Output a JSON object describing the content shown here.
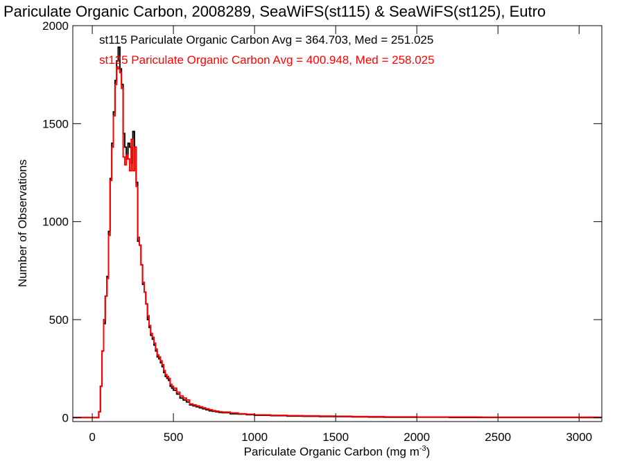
{
  "chart_data": {
    "type": "line",
    "step": true,
    "title": "Pariculate Organic Carbon, 2008289, SeaWiFS(st115) & SeaWiFS(st125), Eutro",
    "xlabel_main": "Pariculate Organic Carbon (mg m",
    "xlabel_sup": "-3",
    "xlabel_close": ")",
    "ylabel": "Number of Observations",
    "xlim": [
      -120,
      3140
    ],
    "ylim": [
      -20,
      2000
    ],
    "xticks": [
      0,
      500,
      1000,
      1500,
      2000,
      2500,
      3000
    ],
    "yticks": [
      0,
      500,
      1000,
      1500,
      2000
    ],
    "grid": false,
    "legend_position": "top-left",
    "series": [
      {
        "name": "st115 Pariculate Organic Carbon Avg = 364.703, Med = 251.025",
        "color": "#000000",
        "x": [
          -120,
          25,
          40,
          50,
          60,
          70,
          80,
          90,
          100,
          110,
          120,
          130,
          140,
          150,
          160,
          170,
          180,
          190,
          200,
          210,
          220,
          230,
          240,
          250,
          260,
          270,
          280,
          290,
          300,
          310,
          320,
          330,
          340,
          350,
          360,
          370,
          380,
          390,
          400,
          410,
          420,
          430,
          440,
          450,
          460,
          470,
          480,
          490,
          500,
          520,
          540,
          560,
          580,
          600,
          620,
          640,
          660,
          680,
          700,
          720,
          740,
          760,
          780,
          800,
          850,
          900,
          950,
          1000,
          1100,
          1200,
          1300,
          1400,
          1500,
          1600,
          1700,
          1800,
          2000,
          2200,
          2400,
          2600,
          2800,
          3000,
          3140
        ],
        "values": [
          0,
          0,
          30,
          160,
          340,
          480,
          620,
          720,
          950,
          1220,
          1400,
          1560,
          1720,
          1820,
          1890,
          1780,
          1700,
          1450,
          1380,
          1320,
          1400,
          1380,
          1300,
          1460,
          1380,
          1200,
          900,
          880,
          780,
          680,
          640,
          580,
          500,
          460,
          420,
          400,
          370,
          340,
          310,
          300,
          280,
          260,
          230,
          210,
          200,
          190,
          160,
          150,
          140,
          120,
          100,
          90,
          80,
          65,
          60,
          55,
          50,
          45,
          40,
          35,
          32,
          30,
          27,
          25,
          20,
          18,
          15,
          12,
          10,
          8,
          7,
          6,
          5,
          4,
          3,
          2,
          2,
          1,
          1,
          1,
          1,
          0,
          0
        ]
      },
      {
        "name": "st125 Pariculate Organic Carbon Avg = 400.948, Med = 258.025",
        "color": "#ff0000",
        "x": [
          -120,
          25,
          40,
          50,
          60,
          70,
          80,
          90,
          100,
          110,
          120,
          130,
          140,
          150,
          160,
          170,
          180,
          190,
          200,
          210,
          220,
          230,
          240,
          250,
          260,
          270,
          280,
          290,
          300,
          310,
          320,
          330,
          340,
          350,
          360,
          370,
          380,
          390,
          400,
          410,
          420,
          430,
          440,
          450,
          460,
          470,
          480,
          490,
          500,
          520,
          540,
          560,
          580,
          600,
          620,
          640,
          660,
          680,
          700,
          720,
          740,
          760,
          780,
          800,
          850,
          900,
          950,
          1000,
          1100,
          1200,
          1300,
          1400,
          1500,
          1600,
          1700,
          1800,
          2000,
          2200,
          2400,
          2600,
          2800,
          3000,
          3140
        ],
        "values": [
          0,
          0,
          30,
          160,
          340,
          500,
          620,
          710,
          930,
          1210,
          1380,
          1540,
          1700,
          1790,
          1780,
          1760,
          1680,
          1330,
          1290,
          1340,
          1320,
          1260,
          1420,
          1260,
          1380,
          1180,
          920,
          880,
          780,
          690,
          640,
          580,
          520,
          470,
          430,
          410,
          380,
          350,
          320,
          310,
          290,
          270,
          240,
          220,
          210,
          200,
          170,
          160,
          150,
          130,
          110,
          100,
          90,
          70,
          65,
          60,
          55,
          50,
          45,
          40,
          36,
          33,
          30,
          28,
          24,
          20,
          17,
          14,
          12,
          10,
          9,
          8,
          7,
          6,
          5,
          4,
          3,
          3,
          2,
          2,
          2,
          2,
          2
        ]
      }
    ]
  }
}
